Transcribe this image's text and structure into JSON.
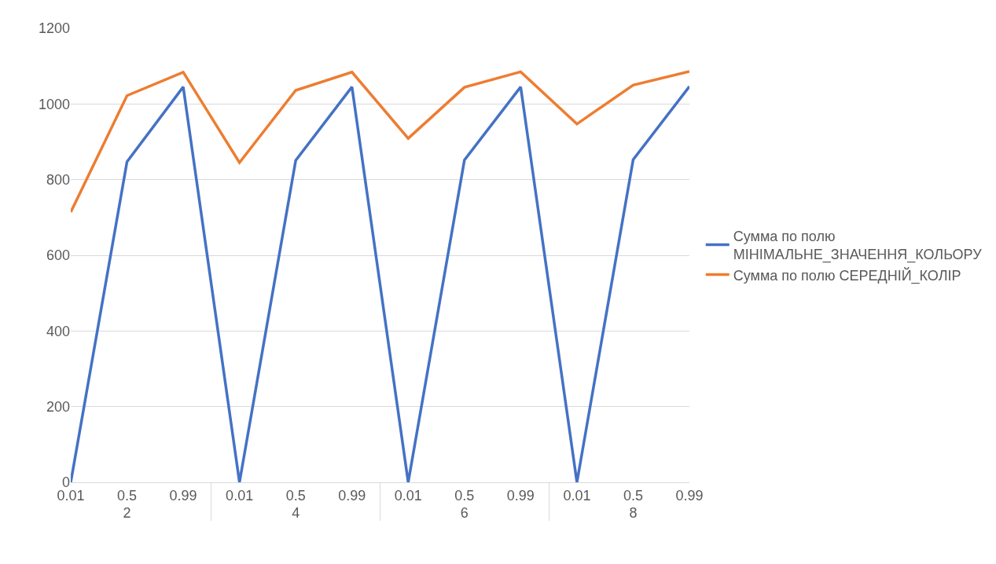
{
  "chart_data": {
    "type": "line",
    "categories": [
      "0.01",
      "0.5",
      "0.99",
      "0.01",
      "0.5",
      "0.99",
      "0.01",
      "0.5",
      "0.99",
      "0.01",
      "0.5",
      "0.99"
    ],
    "annotations": [
      "2",
      "4",
      "6",
      "8"
    ],
    "series": [
      {
        "name": "Сумма по полю МІНІМАЛЬНЕ_ЗНАЧЕННЯ_КОЛЬОРУ",
        "color": "#4472c4",
        "values": [
          0,
          847,
          1045,
          0,
          851,
          1045,
          0,
          852,
          1045,
          0,
          853,
          1046
        ]
      },
      {
        "name": "Сумма по полю СЕРЕДНІЙ_КОЛІР",
        "color": "#ed7d31",
        "values": [
          714,
          1022,
          1084,
          845,
          1036,
          1084,
          909,
          1044,
          1085,
          947,
          1050,
          1086
        ]
      }
    ],
    "ylim": [
      0,
      1200
    ],
    "yticks": [
      0,
      200,
      400,
      600,
      800,
      1000,
      1200
    ],
    "grid": "y",
    "legend": "right",
    "marker": "none",
    "line_style": "solid"
  }
}
